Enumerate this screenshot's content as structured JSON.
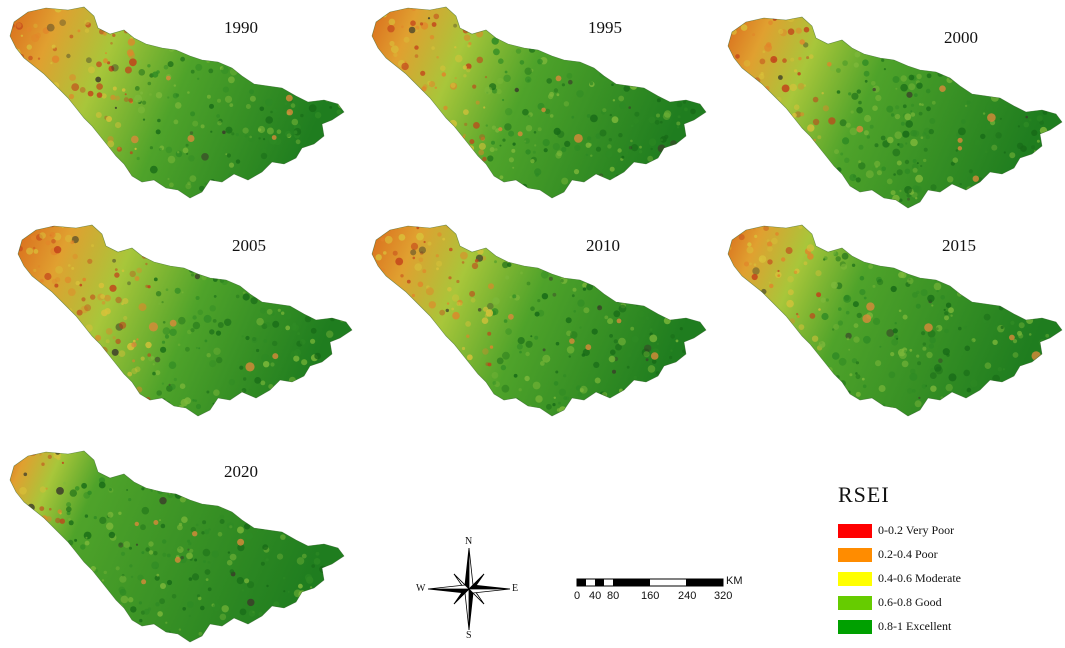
{
  "panels": [
    {
      "year": "1990",
      "dryness": 1.0
    },
    {
      "year": "1995",
      "dryness": 0.9
    },
    {
      "year": "2000",
      "dryness": 0.82
    },
    {
      "year": "2005",
      "dryness": 1.05
    },
    {
      "year": "2010",
      "dryness": 0.95
    },
    {
      "year": "2015",
      "dryness": 0.72
    },
    {
      "year": "2020",
      "dryness": 0.4
    }
  ],
  "legend": {
    "title": "RSEI",
    "items": [
      {
        "label": "0-0.2 Very Poor",
        "color": "#ff0000"
      },
      {
        "label": "0.2-0.4 Poor",
        "color": "#ff8c00"
      },
      {
        "label": "0.4-0.6 Moderate",
        "color": "#ffff00"
      },
      {
        "label": "0.6-0.8 Good",
        "color": "#66cc00"
      },
      {
        "label": "0.8-1 Excellent",
        "color": "#00a000"
      }
    ]
  },
  "compass": {
    "n": "N",
    "s": "S",
    "e": "E",
    "w": "W"
  },
  "scale": {
    "ticks": [
      "0",
      "40",
      "80",
      "160",
      "240",
      "320"
    ],
    "unit": "KM"
  }
}
